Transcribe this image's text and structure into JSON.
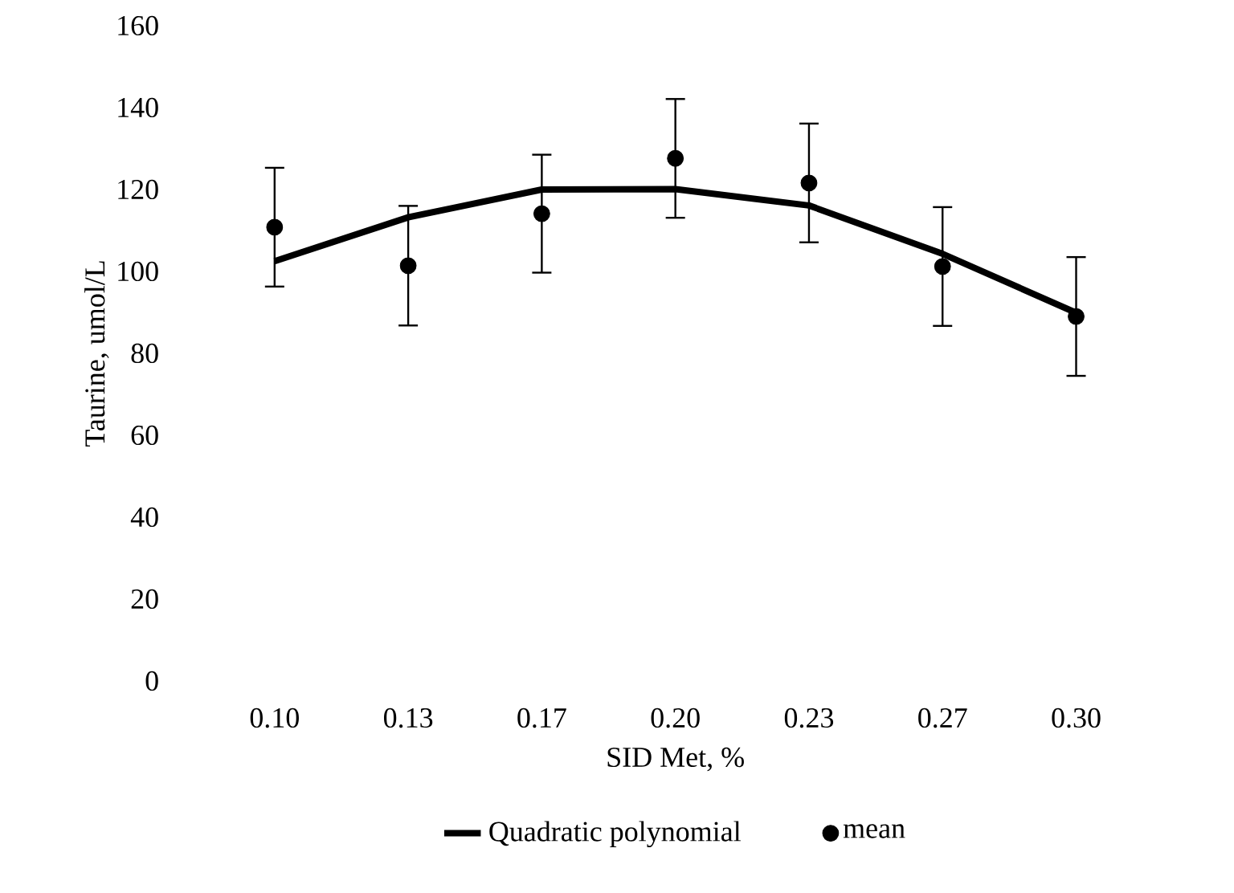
{
  "chart_data": {
    "type": "line",
    "xlabel": "SID Met, %",
    "ylabel": "Taurine, umol/L",
    "categories": [
      "0.10",
      "0.13",
      "0.17",
      "0.20",
      "0.23",
      "0.27",
      "0.30"
    ],
    "series": [
      {
        "name": "Quadratic polynomial",
        "color": "#000000",
        "marker": "none",
        "line_style": "solid",
        "values": [
          102.5,
          113.2,
          120.0,
          120.1,
          116.1,
          104.3,
          89.9
        ]
      },
      {
        "name": "mean",
        "type": "scatter",
        "color": "#000000",
        "marker": "circle",
        "values": [
          110.8,
          101.4,
          114.1,
          127.6,
          121.6,
          101.2,
          89.0
        ],
        "errors": [
          14.5,
          14.6,
          14.4,
          14.5,
          14.5,
          14.5,
          14.5
        ]
      }
    ],
    "ylim": [
      0,
      160
    ],
    "yticks": [
      0,
      20,
      40,
      60,
      80,
      100,
      120,
      140,
      160
    ],
    "grid": false,
    "legend": "bottom"
  }
}
